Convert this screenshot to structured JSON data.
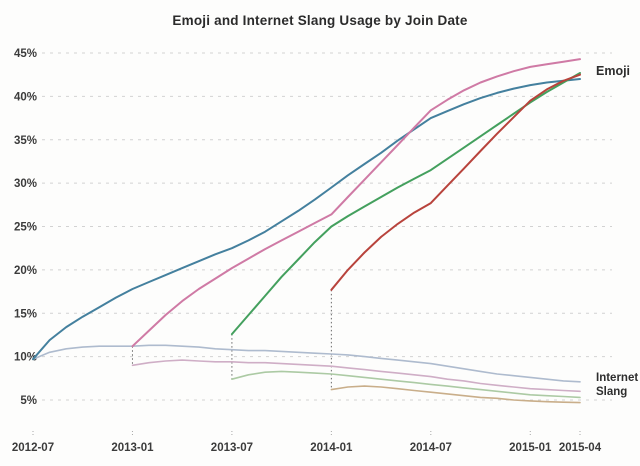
{
  "chart_data": {
    "type": "line",
    "title": "Emoji and Internet Slang Usage by Join Date",
    "xlabel": "",
    "ylabel": "",
    "x_unit": "month",
    "x_range": [
      "2012-07",
      "2015-04"
    ],
    "ylim": [
      2.5,
      46.5
    ],
    "grid": "dashed-horizontal",
    "legend_position": "inline-right-annotations",
    "y_ticks": [
      {
        "value": 45,
        "label": "45%"
      },
      {
        "value": 40,
        "label": "40%"
      },
      {
        "value": 35,
        "label": "35%"
      },
      {
        "value": 30,
        "label": "30%"
      },
      {
        "value": 25,
        "label": "25%"
      },
      {
        "value": 20,
        "label": "20%"
      },
      {
        "value": 15,
        "label": "15%"
      },
      {
        "value": 10,
        "label": "10%"
      },
      {
        "value": 5,
        "label": "5%"
      }
    ],
    "x_ticks": [
      {
        "index": 0,
        "label": "2012-07"
      },
      {
        "index": 6,
        "label": "2013-01"
      },
      {
        "index": 12,
        "label": "2013-07"
      },
      {
        "index": 18,
        "label": "2014-01"
      },
      {
        "index": 24,
        "label": "2014-07"
      },
      {
        "index": 30,
        "label": "2015-01"
      },
      {
        "index": 33,
        "label": "2015-04"
      }
    ],
    "annotations": [
      {
        "id": "emoji_label",
        "text": "Emoji"
      },
      {
        "id": "slang_label",
        "text": "Internet Slang"
      }
    ],
    "connectors": [
      {
        "month_index": 6,
        "from": 11.2,
        "to": 9.0
      },
      {
        "month_index": 12,
        "from": 12.6,
        "to": 7.4
      },
      {
        "month_index": 18,
        "from": 17.7,
        "to": 6.2
      }
    ],
    "series": [
      {
        "name": "emoji-joined-2012-07",
        "group": "Emoji",
        "join_date": "2012-07",
        "color": "#44809e",
        "width": 2,
        "values": [
          9.7,
          11.9,
          13.4,
          14.6,
          15.7,
          16.8,
          17.8,
          18.6,
          19.4,
          20.2,
          21.0,
          21.8,
          22.5,
          23.4,
          24.4,
          25.6,
          26.8,
          28.1,
          29.5,
          30.9,
          32.2,
          33.5,
          34.9,
          36.2,
          37.5,
          38.3,
          39.1,
          39.8,
          40.4,
          40.9,
          41.3,
          41.6,
          41.8,
          42.0
        ]
      },
      {
        "name": "emoji-joined-2013-01",
        "group": "Emoji",
        "join_date": "2013-01",
        "color": "#cf7aa5",
        "width": 2,
        "values": [
          null,
          null,
          null,
          null,
          null,
          null,
          11.2,
          13.0,
          14.8,
          16.4,
          17.8,
          19.0,
          20.2,
          21.3,
          22.4,
          23.4,
          24.4,
          25.4,
          26.4,
          28.4,
          30.4,
          32.4,
          34.4,
          36.4,
          38.4,
          39.6,
          40.7,
          41.6,
          42.3,
          42.9,
          43.4,
          43.7,
          44.0,
          44.3
        ]
      },
      {
        "name": "emoji-joined-2013-07",
        "group": "Emoji",
        "join_date": "2013-07",
        "color": "#44a05e",
        "width": 2,
        "values": [
          null,
          null,
          null,
          null,
          null,
          null,
          null,
          null,
          null,
          null,
          null,
          null,
          12.6,
          14.8,
          17.0,
          19.2,
          21.2,
          23.2,
          25.0,
          26.2,
          27.3,
          28.4,
          29.5,
          30.5,
          31.5,
          32.8,
          34.1,
          35.4,
          36.7,
          38.0,
          39.3,
          40.5,
          41.6,
          42.7
        ]
      },
      {
        "name": "emoji-joined-2014-01",
        "group": "Emoji",
        "join_date": "2014-01",
        "color": "#b8433c",
        "width": 2,
        "values": [
          null,
          null,
          null,
          null,
          null,
          null,
          null,
          null,
          null,
          null,
          null,
          null,
          null,
          null,
          null,
          null,
          null,
          null,
          17.7,
          20.0,
          22.0,
          23.8,
          25.3,
          26.6,
          27.7,
          29.7,
          31.7,
          33.7,
          35.7,
          37.6,
          39.5,
          40.8,
          41.8,
          42.5
        ]
      },
      {
        "name": "slang-joined-2012-07",
        "group": "Internet Slang",
        "join_date": "2012-07",
        "color": "#aebbce",
        "width": 1.6,
        "values": [
          9.7,
          10.5,
          10.9,
          11.1,
          11.2,
          11.2,
          11.2,
          11.3,
          11.3,
          11.2,
          11.1,
          10.9,
          10.8,
          10.7,
          10.7,
          10.6,
          10.5,
          10.4,
          10.3,
          10.2,
          10.0,
          9.8,
          9.6,
          9.4,
          9.2,
          8.9,
          8.6,
          8.3,
          8.0,
          7.8,
          7.6,
          7.4,
          7.2,
          7.1
        ]
      },
      {
        "name": "slang-joined-2013-01",
        "group": "Internet Slang",
        "join_date": "2013-01",
        "color": "#cfaec6",
        "width": 1.6,
        "values": [
          null,
          null,
          null,
          null,
          null,
          null,
          9.0,
          9.3,
          9.5,
          9.6,
          9.5,
          9.4,
          9.4,
          9.3,
          9.3,
          9.2,
          9.1,
          9.0,
          8.9,
          8.7,
          8.5,
          8.3,
          8.1,
          7.9,
          7.7,
          7.4,
          7.2,
          6.9,
          6.7,
          6.5,
          6.3,
          6.2,
          6.1,
          6.0
        ]
      },
      {
        "name": "slang-joined-2013-07",
        "group": "Internet Slang",
        "join_date": "2013-07",
        "color": "#accaa4",
        "width": 1.6,
        "values": [
          null,
          null,
          null,
          null,
          null,
          null,
          null,
          null,
          null,
          null,
          null,
          null,
          7.4,
          7.9,
          8.2,
          8.3,
          8.2,
          8.1,
          8.0,
          7.8,
          7.6,
          7.4,
          7.2,
          7.0,
          6.8,
          6.6,
          6.4,
          6.2,
          6.0,
          5.8,
          5.6,
          5.5,
          5.4,
          5.3
        ]
      },
      {
        "name": "slang-joined-2014-01",
        "group": "Internet Slang",
        "join_date": "2014-01",
        "color": "#c9ae8a",
        "width": 1.6,
        "values": [
          null,
          null,
          null,
          null,
          null,
          null,
          null,
          null,
          null,
          null,
          null,
          null,
          null,
          null,
          null,
          null,
          null,
          null,
          6.2,
          6.5,
          6.6,
          6.5,
          6.3,
          6.1,
          5.9,
          5.7,
          5.5,
          5.3,
          5.2,
          5.0,
          4.9,
          4.8,
          4.75,
          4.7
        ]
      }
    ],
    "colors": {
      "background": "#fdfdfc",
      "gridline": "#d2d2d2",
      "tick_mark": "#a8a8a8",
      "axis_text": "#3b3b3b",
      "title_text": "#2b2b2b",
      "connector": "#6a6a6a"
    }
  }
}
